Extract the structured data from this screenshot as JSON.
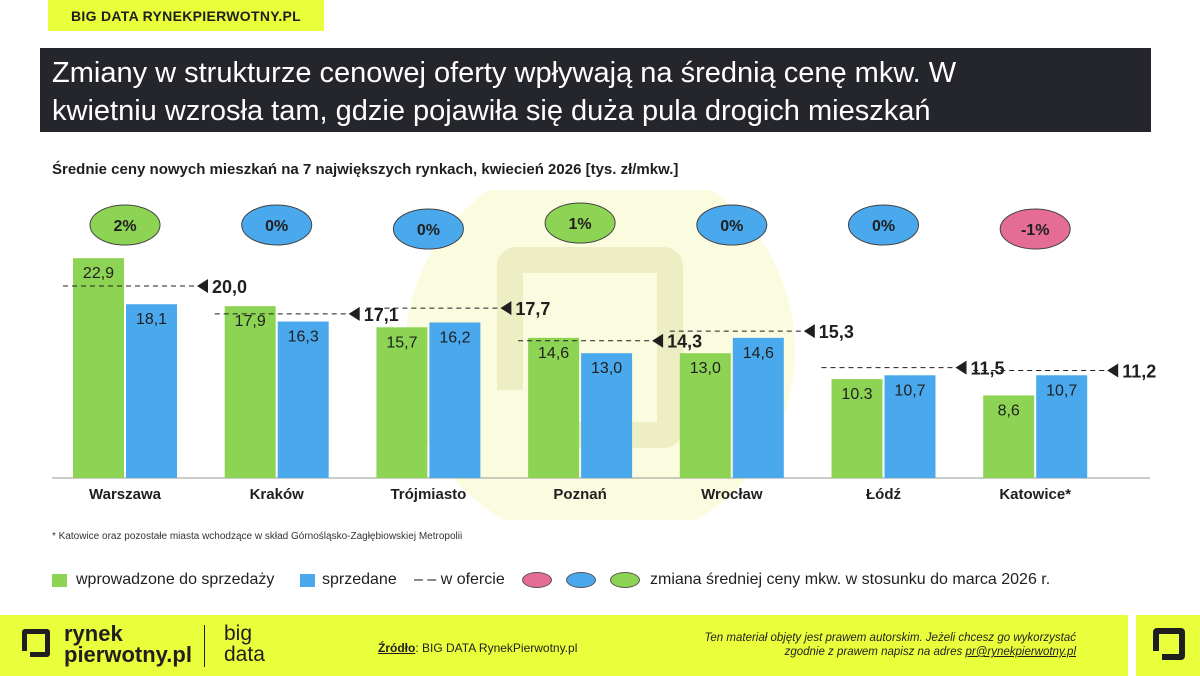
{
  "brand_tag": "BIG DATA RYNEKPIERWOTNY.PL",
  "title_line1": "Zmiany w strukturze cenowej oferty wpływają na średnią cenę mkw. W",
  "title_line2": "kwietniu wzrosła tam, gdzie pojawiła się duża pula drogich mieszkań",
  "chart_data": {
    "type": "bar",
    "title": "Średnie ceny nowych mieszkań na 7 największych rynkach, kwiecień 2026 [tys. zł/mkw.]",
    "categories": [
      "Warszawa",
      "Kraków",
      "Trójmiasto",
      "Poznań",
      "Wrocław",
      "Łódź",
      "Katowice*"
    ],
    "series": [
      {
        "name": "wprowadzone do sprzedaży",
        "values": [
          22.9,
          17.9,
          15.7,
          14.6,
          13.0,
          10.3,
          8.6
        ],
        "labels": [
          "22,9",
          "17,9",
          "15,7",
          "14,6",
          "13,0",
          "10.3",
          "8,6"
        ]
      },
      {
        "name": "sprzedane",
        "values": [
          18.1,
          16.3,
          16.2,
          13.0,
          14.6,
          10.7,
          10.7
        ],
        "labels": [
          "18,1",
          "16,3",
          "16,2",
          "13,0",
          "14,6",
          "10,7",
          "10,7"
        ]
      },
      {
        "name": "w ofercie",
        "values": [
          20.0,
          17.1,
          17.7,
          14.3,
          15.3,
          11.5,
          11.2
        ],
        "labels": [
          "20,0",
          "17,1",
          "17,7",
          "14,3",
          "15,3",
          "11,5",
          "11,2"
        ]
      }
    ],
    "changes": [
      {
        "label": "2%",
        "type": "positive"
      },
      {
        "label": "0%",
        "type": "neutral"
      },
      {
        "label": "0%",
        "type": "neutral"
      },
      {
        "label": "1%",
        "type": "positive"
      },
      {
        "label": "0%",
        "type": "neutral"
      },
      {
        "label": "0%",
        "type": "neutral"
      },
      {
        "label": "-1%",
        "type": "negative"
      }
    ],
    "ylim": [
      0,
      24
    ],
    "colors": {
      "introduced": "#8ed454",
      "sold": "#4aa8ec",
      "positive": "#8ed454",
      "neutral": "#4aa8ec",
      "negative": "#e56c94",
      "offer_line": "#1f1f1f"
    }
  },
  "footnote": "* Katowice oraz pozostałe miasta wchodzące w skład Górnośląsko-Zagłębiowskiej Metropolii",
  "legend": {
    "introduced": "wprowadzone do sprzedaży",
    "sold": "sprzedane",
    "offer": "– – w ofercie",
    "change": "zmiana średniej ceny mkw. w stosunku do marca 2026 r."
  },
  "footer": {
    "logo_line1": "rynek",
    "logo_line2": "pierwotny.pl",
    "bd_line1": "big",
    "bd_line2": "data",
    "source_label": "Źródło",
    "source_text": ": BIG DATA RynekPierwotny.pl",
    "copyright_line1": "Ten materiał objęty jest prawem autorskim. Jeżeli chcesz go wykorzystać",
    "copyright_line2": "zgodnie z prawem napisz na adres ",
    "email": "pr@rynekpierwotny.pl"
  }
}
